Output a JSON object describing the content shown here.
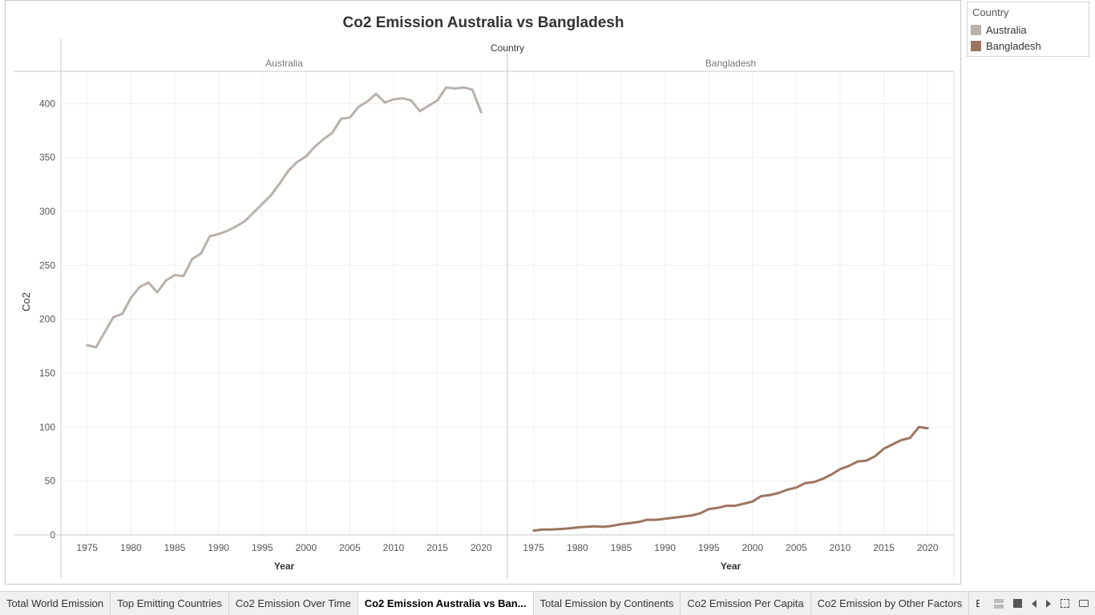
{
  "chart_data": {
    "type": "line",
    "title": "Co2 Emission Australia vs Bangladesh",
    "column_header": "Country",
    "xlabel": "Year",
    "ylabel": "Co2",
    "ylim": [
      0,
      430
    ],
    "xlim": [
      1972,
      2023
    ],
    "x_ticks": [
      1975,
      1980,
      1985,
      1990,
      1995,
      2000,
      2005,
      2010,
      2015,
      2020
    ],
    "y_ticks": [
      0,
      50,
      100,
      150,
      200,
      250,
      300,
      350,
      400
    ],
    "grid": true,
    "legend_position": "top-right",
    "panels": [
      {
        "name": "Australia",
        "color": "#bab0ac",
        "x": [
          1975,
          1976,
          1977,
          1978,
          1979,
          1980,
          1981,
          1982,
          1983,
          1984,
          1985,
          1986,
          1987,
          1988,
          1989,
          1990,
          1991,
          1992,
          1993,
          1994,
          1995,
          1996,
          1997,
          1998,
          1999,
          2000,
          2001,
          2002,
          2003,
          2004,
          2005,
          2006,
          2007,
          2008,
          2009,
          2010,
          2011,
          2012,
          2013,
          2014,
          2015,
          2016,
          2017,
          2018,
          2019,
          2020
        ],
        "values": [
          176,
          174,
          188,
          202,
          205,
          220,
          230,
          234,
          225,
          236,
          241,
          240,
          256,
          261,
          277,
          279,
          282,
          286,
          291,
          299,
          307,
          315,
          326,
          338,
          346,
          351,
          360,
          367,
          373,
          386,
          387,
          397,
          402,
          409,
          401,
          404,
          405,
          403,
          393,
          398,
          403,
          415,
          414,
          415,
          413,
          392
        ]
      },
      {
        "name": "Bangladesh",
        "color": "#9c755f",
        "x": [
          1975,
          1976,
          1977,
          1978,
          1979,
          1980,
          1981,
          1982,
          1983,
          1984,
          1985,
          1986,
          1987,
          1988,
          1989,
          1990,
          1991,
          1992,
          1993,
          1994,
          1995,
          1996,
          1997,
          1998,
          1999,
          2000,
          2001,
          2002,
          2003,
          2004,
          2005,
          2006,
          2007,
          2008,
          2009,
          2010,
          2011,
          2012,
          2013,
          2014,
          2015,
          2016,
          2017,
          2018,
          2019,
          2020
        ],
        "values": [
          4,
          5,
          5,
          5.5,
          6,
          7,
          7.5,
          8,
          7.5,
          8.5,
          10,
          11,
          12,
          14,
          14,
          15,
          16,
          17,
          18,
          20,
          24,
          25,
          27,
          27,
          29,
          31,
          36,
          37,
          39,
          42,
          44,
          48,
          49,
          52,
          56,
          61,
          64,
          68,
          69,
          73,
          80,
          84,
          88,
          90,
          100,
          99
        ]
      }
    ]
  },
  "legend": {
    "title": "Country",
    "items": [
      {
        "label": "Australia",
        "color": "#bab0ac"
      },
      {
        "label": "Bangladesh",
        "color": "#9c755f"
      }
    ]
  },
  "tabs": [
    {
      "label": "Total World Emission",
      "active": false
    },
    {
      "label": "Top Emitting Countries",
      "active": false
    },
    {
      "label": "Co2 Emission Over Time",
      "active": false
    },
    {
      "label": "Co2 Emission Australia vs Ban...",
      "active": true
    },
    {
      "label": "Total Emission by Continents",
      "active": false
    },
    {
      "label": "Co2 Emission Per Capita",
      "active": false
    },
    {
      "label": "Co2 Emission by Other Factors",
      "active": false
    },
    {
      "label": "Emission",
      "active": false
    }
  ]
}
